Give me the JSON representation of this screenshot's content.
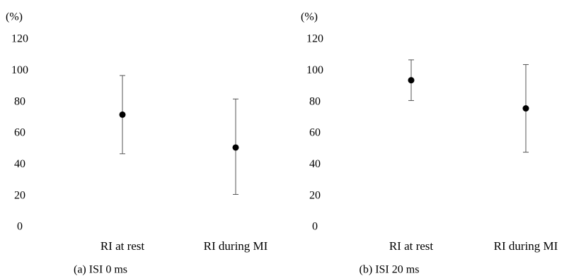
{
  "chart_data": [
    {
      "type": "scatter",
      "subtype": "mean-with-error-bars",
      "caption": "(a) ISI 0 ms",
      "y_unit_label": "(%)",
      "ylim": [
        0,
        120
      ],
      "y_ticks": [
        0,
        20,
        40,
        60,
        80,
        100,
        120
      ],
      "y_tick_labels": [
        "0",
        "20",
        "40",
        "60",
        "80",
        "100",
        "120"
      ],
      "categories": [
        "RI at rest",
        "RI during MI"
      ],
      "points": [
        {
          "category": "RI at rest",
          "value": 72,
          "error_low": 47,
          "error_high": 97
        },
        {
          "category": "RI during MI",
          "value": 51,
          "error_low": 21,
          "error_high": 82
        }
      ],
      "grid": false,
      "marker_color": "#000000",
      "error_bar_color": "#555555"
    },
    {
      "type": "scatter",
      "subtype": "mean-with-error-bars",
      "caption": "(b) ISI 20 ms",
      "y_unit_label": "(%)",
      "ylim": [
        0,
        120
      ],
      "y_ticks": [
        0,
        20,
        40,
        60,
        80,
        100,
        120
      ],
      "y_tick_labels": [
        "0",
        "20",
        "40",
        "60",
        "80",
        "100",
        "120"
      ],
      "categories": [
        "RI at rest",
        "RI during MI"
      ],
      "points": [
        {
          "category": "RI at rest",
          "value": 94,
          "error_low": 81,
          "error_high": 107
        },
        {
          "category": "RI during MI",
          "value": 76,
          "error_low": 48,
          "error_high": 104
        }
      ],
      "grid": false,
      "marker_color": "#000000",
      "error_bar_color": "#555555"
    }
  ]
}
